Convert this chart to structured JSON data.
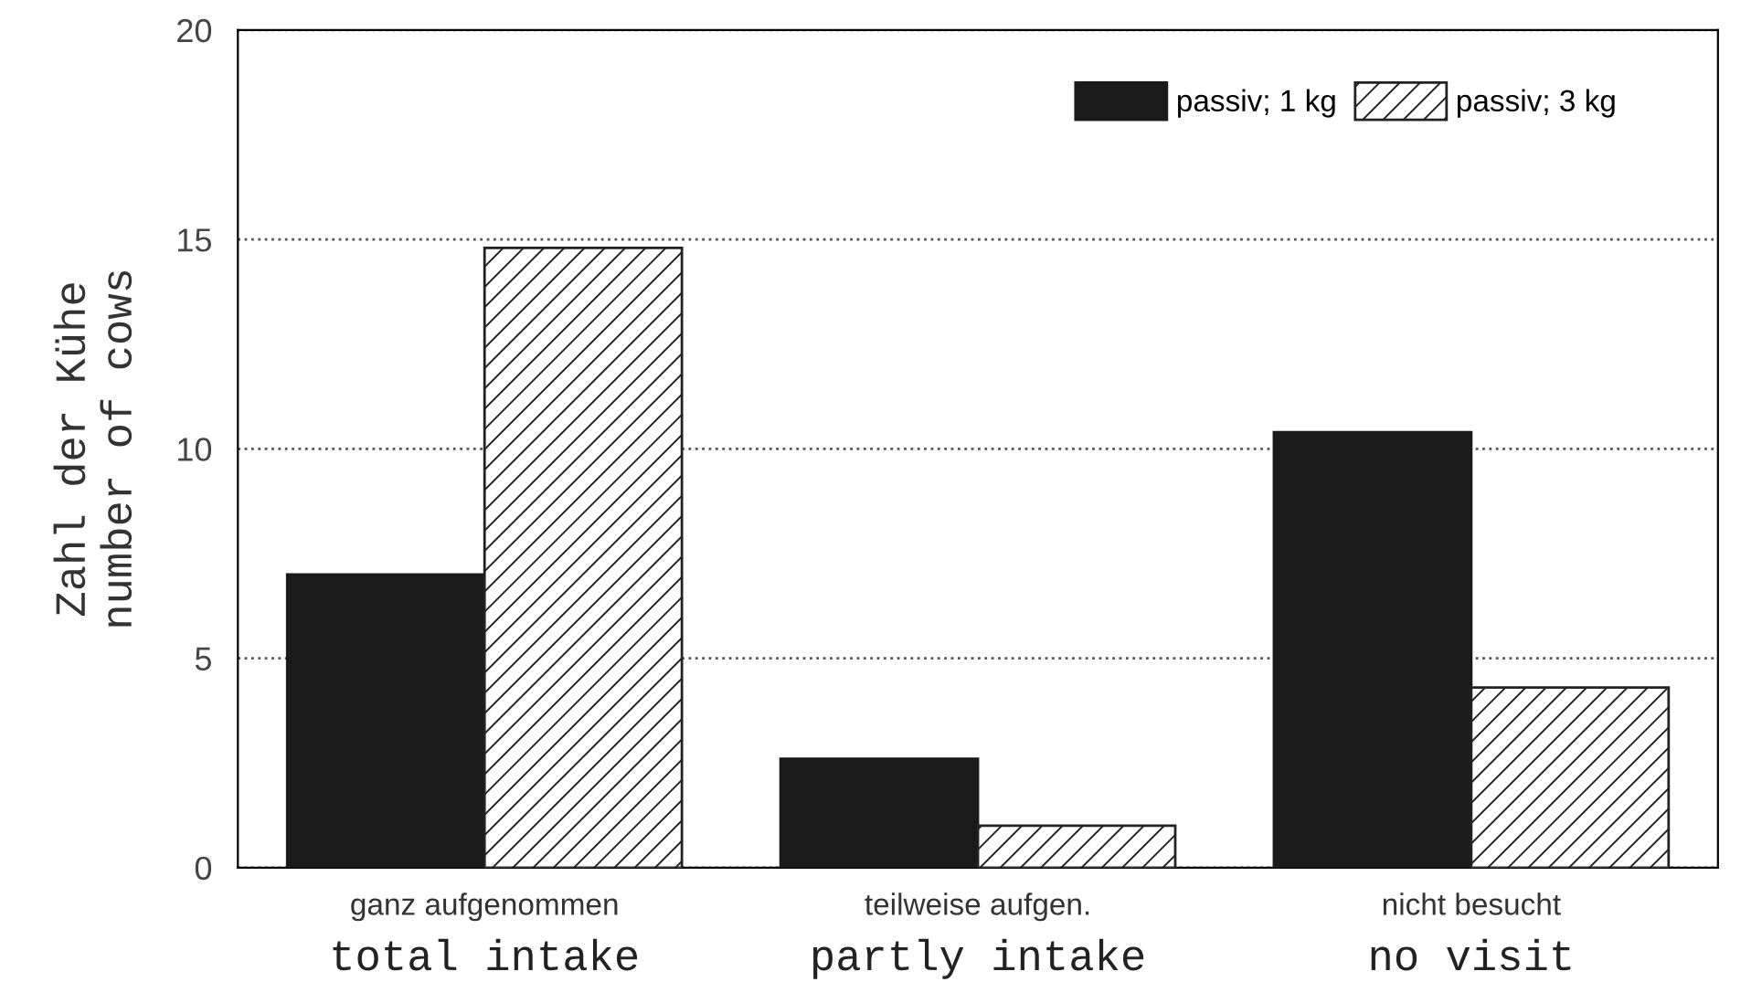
{
  "chart_data": {
    "type": "bar",
    "ylabel": "Zahl der Kühe\nnumber of cows",
    "categories": [
      "ganz aufgenommen\ntotal intake",
      "teilweise aufgen.\npartly intake",
      "nicht besucht\nno visit"
    ],
    "series": [
      {
        "name": "passiv; 1 kg",
        "color": "#1a1a1a",
        "values": [
          7.0,
          2.6,
          10.4
        ]
      },
      {
        "name": "passiv; 3 kg",
        "color": "#222222",
        "values": [
          14.8,
          1.0,
          4.3
        ]
      }
    ],
    "ylim": [
      0,
      20
    ],
    "yticks": [
      0,
      5,
      10,
      15,
      20
    ],
    "grid": "y",
    "legend": "top right"
  }
}
